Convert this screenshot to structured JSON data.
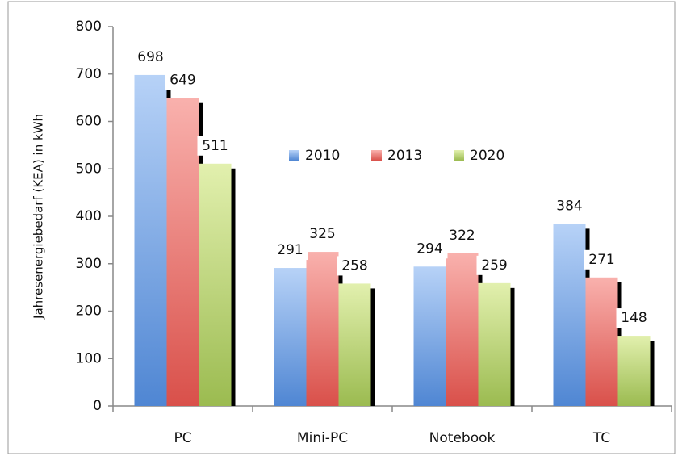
{
  "chart_data": {
    "type": "bar",
    "y_label": "Jahresenergiebedarf (KEA) in kWh",
    "categories": [
      "PC",
      "Mini-PC",
      "Notebook",
      "TC"
    ],
    "series": [
      {
        "name": "2010",
        "color": "#5b8fd8",
        "values": [
          698,
          291,
          294,
          384
        ]
      },
      {
        "name": "2013",
        "color": "#dc5852",
        "values": [
          649,
          325,
          322,
          271
        ]
      },
      {
        "name": "2020",
        "color": "#a5c35c",
        "values": [
          511,
          258,
          259,
          148
        ]
      }
    ],
    "ylim": [
      0,
      800
    ],
    "yticks": [
      0,
      100,
      200,
      300,
      400,
      500,
      600,
      700,
      800
    ],
    "legend": "top"
  }
}
